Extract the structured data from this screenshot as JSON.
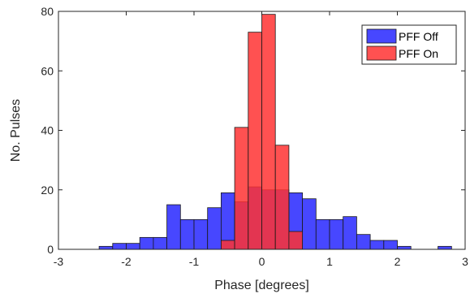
{
  "chart_data": {
    "type": "bar",
    "xlabel": "Phase [degrees]",
    "ylabel": "No. Pulses",
    "xlim": [
      -3,
      3
    ],
    "ylim": [
      0,
      80
    ],
    "xticks": [
      "-3",
      "-2",
      "-1",
      "0",
      "1",
      "2",
      "3"
    ],
    "yticks": [
      "0",
      "20",
      "40",
      "60",
      "80"
    ],
    "bin_width": 0.2,
    "legend_position": "top-right",
    "grid": false,
    "series": [
      {
        "name": "PFF Off",
        "color": "#3333ff",
        "bin_starts": [
          -2.4,
          -2.2,
          -2.0,
          -1.8,
          -1.6,
          -1.4,
          -1.2,
          -1.0,
          -0.8,
          -0.6,
          -0.4,
          -0.2,
          0.0,
          0.2,
          0.4,
          0.6,
          0.8,
          1.0,
          1.2,
          1.4,
          1.6,
          1.8,
          2.0,
          2.2,
          2.4,
          2.6
        ],
        "values": [
          1,
          2,
          2,
          4,
          4,
          15,
          10,
          10,
          14,
          19,
          16,
          21,
          20,
          20,
          19,
          17,
          10,
          10,
          11,
          5,
          3,
          3,
          1,
          0,
          0,
          1
        ]
      },
      {
        "name": "PFF On",
        "color": "#ff3333",
        "bin_starts": [
          -0.6,
          -0.4,
          -0.2,
          0.0,
          0.2,
          0.4
        ],
        "values": [
          3,
          41,
          73,
          79,
          35,
          6
        ]
      }
    ]
  }
}
